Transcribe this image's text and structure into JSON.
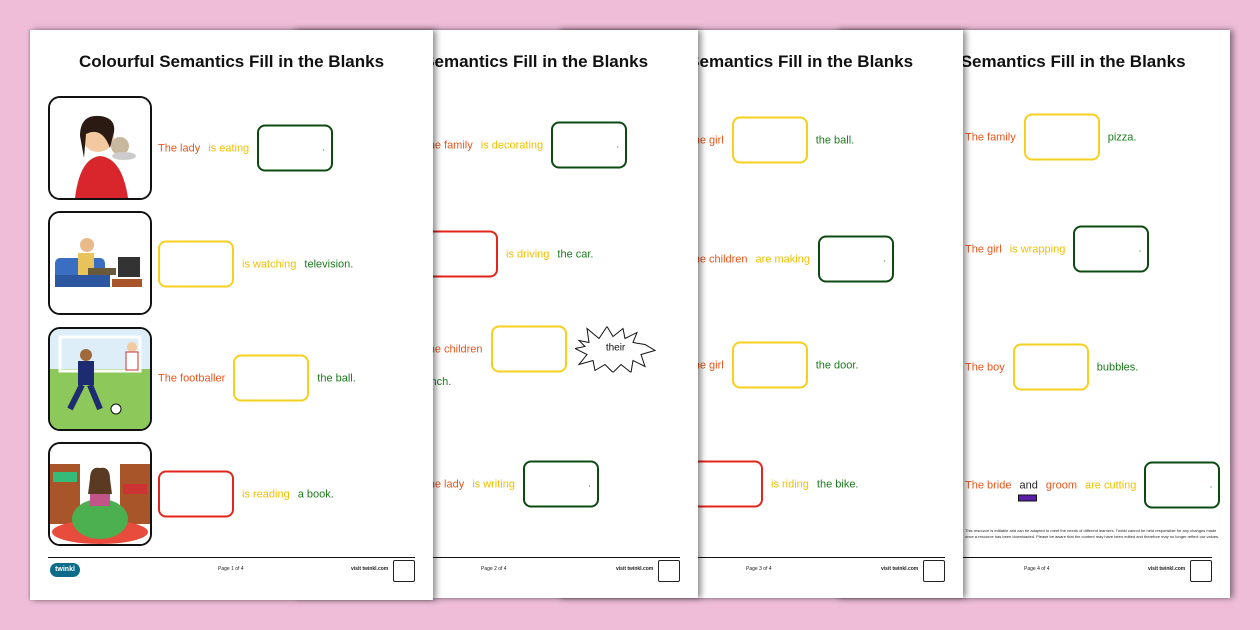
{
  "title": "Colourful Semantics Fill in the Blanks",
  "colors": {
    "who": "#e8561c",
    "doing": "#f0c000",
    "what": "#1c7a1c",
    "box_who": "#e3241b",
    "box_doing": "#f7cf1d",
    "box_what": "#0d4a12",
    "background": "#efbdd8"
  },
  "footer": {
    "url": "visit twinkl.com",
    "logo": "twinkl"
  },
  "pages": [
    {
      "page_label": "Page 1 of 4",
      "images": [
        "lady-eating",
        "man-watching-tv",
        "footballer",
        "girl-reading"
      ],
      "rows": [
        [
          {
            "text": "The lady",
            "role": "who"
          },
          {
            "text": "is eating",
            "role": "doing"
          },
          {
            "box": "what"
          }
        ],
        [
          {
            "box": "doing"
          },
          {
            "text": "is watching",
            "role": "doing"
          },
          {
            "text": "television.",
            "role": "what"
          }
        ],
        [
          {
            "text": "The footballer",
            "role": "who"
          },
          {
            "box": "doing"
          },
          {
            "text": "the ball.",
            "role": "what"
          }
        ],
        [
          {
            "box": "who"
          },
          {
            "text": "is reading",
            "role": "doing"
          },
          {
            "text": "a book.",
            "role": "what"
          }
        ]
      ]
    },
    {
      "page_label": "Page 2 of 4",
      "rows": [
        [
          {
            "text": "The family",
            "role": "who"
          },
          {
            "text": "is decorating",
            "role": "doing"
          },
          {
            "box": "what"
          }
        ],
        [
          {
            "box": "who"
          },
          {
            "text": "is driving",
            "role": "doing"
          },
          {
            "text": "the car.",
            "role": "what"
          }
        ],
        [
          {
            "text": "The children",
            "role": "who"
          },
          {
            "box": "doing"
          },
          {
            "burst": "their"
          }
        ],
        [
          {
            "text": "The lady",
            "role": "who"
          },
          {
            "text": "is writing",
            "role": "doing"
          },
          {
            "box": "what"
          }
        ]
      ],
      "continuation": "lunch."
    },
    {
      "page_label": "Page 3 of 4",
      "rows": [
        [
          {
            "text": "The girl",
            "role": "who"
          },
          {
            "box": "doing"
          },
          {
            "text": "the ball.",
            "role": "what"
          }
        ],
        [
          {
            "text": "The children",
            "role": "who"
          },
          {
            "text": "are making",
            "role": "doing"
          },
          {
            "box": "what"
          }
        ],
        [
          {
            "text": "The girl",
            "role": "who"
          },
          {
            "box": "doing"
          },
          {
            "text": "the door.",
            "role": "what"
          }
        ],
        [
          {
            "box": "who"
          },
          {
            "text": "is riding",
            "role": "doing"
          },
          {
            "text": "the bike.",
            "role": "what"
          }
        ]
      ]
    },
    {
      "page_label": "Page 4 of 4",
      "rows": [
        [
          {
            "text": "The family",
            "role": "who"
          },
          {
            "box": "doing"
          },
          {
            "text": "pizza.",
            "role": "what"
          }
        ],
        [
          {
            "text": "The girl",
            "role": "who"
          },
          {
            "text": "is wrapping",
            "role": "doing"
          },
          {
            "box": "what"
          }
        ],
        [
          {
            "text": "The boy",
            "role": "who"
          },
          {
            "box": "doing"
          },
          {
            "text": "bubbles.",
            "role": "what"
          }
        ],
        [
          {
            "text": "The bride",
            "role": "who"
          },
          {
            "text": "and",
            "role": "other"
          },
          {
            "text": "groom",
            "role": "who"
          },
          {
            "text": "are cutting",
            "role": "doing"
          },
          {
            "box": "what"
          }
        ]
      ],
      "disclaimer": "This resource is editable and can be adapted to meet the needs of different learners. Twinkl cannot be held responsible for any changes made once a resource has been downloaded. Please be aware that the content may have been edited and therefore may no longer reflect our values."
    }
  ]
}
